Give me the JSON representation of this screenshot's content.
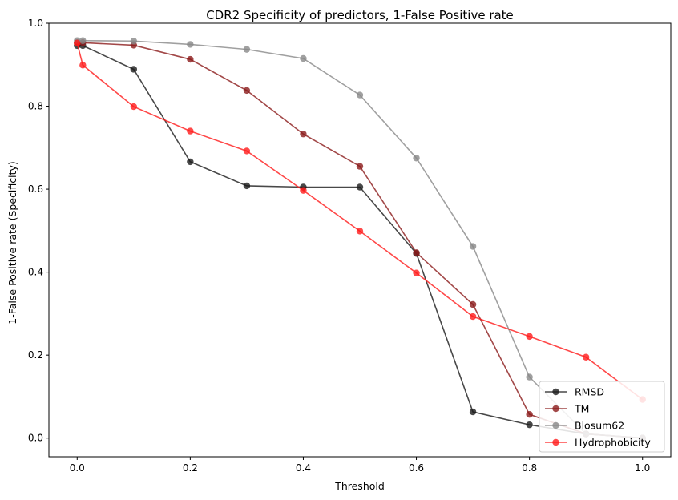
{
  "chart_data": {
    "type": "line",
    "title": "CDR2 Specificity of predictors, 1-False Positive rate",
    "xlabel": "Threshold",
    "ylabel": "1-False Positive rate (Specificity)",
    "xlim": [
      -0.05,
      1.05
    ],
    "ylim": [
      -0.045,
      1.0
    ],
    "x_ticks": [
      "0.0",
      "0.2",
      "0.4",
      "0.6",
      "0.8",
      "1.0"
    ],
    "y_ticks": [
      "0.0",
      "0.2",
      "0.4",
      "0.6",
      "0.8",
      "1.0"
    ],
    "grid": false,
    "legend_position": "lower-right",
    "marker": "circle",
    "series": [
      {
        "name": "RMSD",
        "color": "#1a1a1a",
        "x": [
          0.0,
          0.01,
          0.1,
          0.2,
          0.3,
          0.4,
          0.5,
          0.6,
          0.7,
          0.8,
          0.9,
          1.0
        ],
        "y": [
          0.946,
          0.946,
          0.889,
          0.666,
          0.608,
          0.605,
          0.605,
          0.445,
          0.063,
          0.032,
          0.01,
          0.0
        ]
      },
      {
        "name": "TM",
        "color": "#8b1a1a",
        "x": [
          0.0,
          0.01,
          0.1,
          0.2,
          0.3,
          0.4,
          0.5,
          0.6,
          0.7,
          0.8,
          0.9,
          1.0
        ],
        "y": [
          0.953,
          0.953,
          0.947,
          0.913,
          0.838,
          0.733,
          0.655,
          0.447,
          0.322,
          0.057,
          0.01,
          0.0
        ]
      },
      {
        "name": "Blosum62",
        "color": "#888888",
        "x": [
          0.0,
          0.01,
          0.1,
          0.2,
          0.3,
          0.4,
          0.5,
          0.6,
          0.7,
          0.8,
          0.9,
          1.0
        ],
        "y": [
          0.958,
          0.958,
          0.957,
          0.949,
          0.937,
          0.915,
          0.827,
          0.675,
          0.462,
          0.147,
          0.01,
          0.0
        ]
      },
      {
        "name": "Hydrophobicity",
        "color": "#ff1a1a",
        "x": [
          0.0,
          0.01,
          0.1,
          0.2,
          0.3,
          0.4,
          0.5,
          0.6,
          0.7,
          0.8,
          0.9,
          1.0
        ],
        "y": [
          0.952,
          0.899,
          0.799,
          0.74,
          0.692,
          0.597,
          0.499,
          0.398,
          0.293,
          0.245,
          0.195,
          0.093
        ]
      }
    ]
  }
}
